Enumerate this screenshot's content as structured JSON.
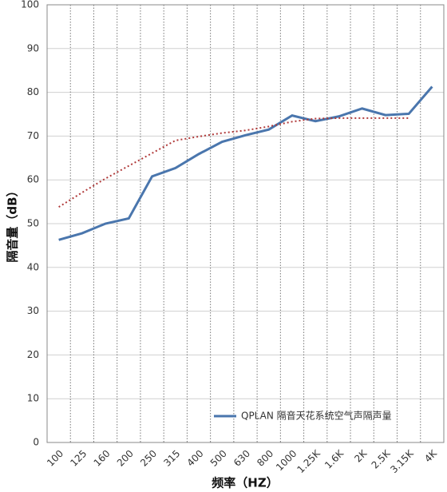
{
  "chart_data": {
    "type": "line",
    "ylabel": "隔音量（dB）",
    "xlabel": "频率（HZ）",
    "categories": [
      "100",
      "125",
      "160",
      "200",
      "250",
      "315",
      "400",
      "500",
      "630",
      "800",
      "1000",
      "1.25K",
      "1.6K",
      "2K",
      "2.5K",
      "3.15K",
      "4K"
    ],
    "series": [
      {
        "name": "QPLAN 隔音天花系统空气声隔声量",
        "color": "#4a76ad",
        "style": "solid",
        "values": [
          46.3,
          47.8,
          50,
          51.2,
          60.8,
          62.7,
          65.9,
          68.7,
          70.2,
          71.5,
          74.7,
          73.4,
          74.5,
          76.3,
          74.8,
          75.1,
          81.3
        ]
      },
      {
        "color": "#b03a3a",
        "style": "dotted",
        "values": [
          53.8,
          57.1,
          60.3,
          63.2,
          66.1,
          69,
          69.9,
          70.7,
          71.3,
          72.2,
          73.3,
          74.0,
          74.1,
          74.1,
          74.1,
          74.1,
          null
        ]
      }
    ],
    "ylim": [
      0,
      100
    ],
    "yticks": [
      0,
      10,
      20,
      30,
      40,
      50,
      60,
      70,
      80,
      90,
      100
    ],
    "grid": true,
    "legend": "lower right"
  }
}
